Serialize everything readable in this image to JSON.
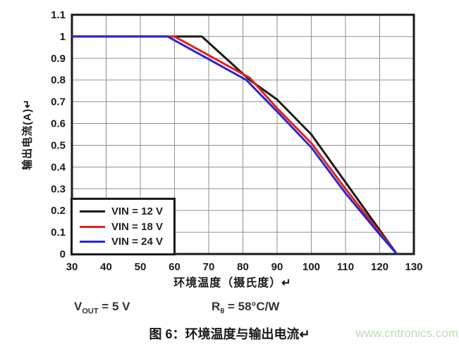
{
  "chart_data": {
    "type": "line",
    "title": "",
    "xlabel": "环境温度（摄氏度）↵",
    "ylabel": "输出电流(A)↵",
    "xlim": [
      30,
      130
    ],
    "ylim": [
      0,
      1.1
    ],
    "grid": true,
    "grid_color": "#8f8f8f",
    "axis_color": "#1a1a1a",
    "legend_position": "bottom-left",
    "x_ticks": [
      [
        30,
        "30"
      ],
      [
        40,
        "40"
      ],
      [
        50,
        "50"
      ],
      [
        60,
        "60"
      ],
      [
        70,
        "70"
      ],
      [
        80,
        "80"
      ],
      [
        90,
        "90"
      ],
      [
        100,
        "100"
      ],
      [
        110,
        "110"
      ],
      [
        120,
        "120"
      ],
      [
        130,
        "130"
      ]
    ],
    "y_ticks": [
      [
        0,
        "0"
      ],
      [
        0.1,
        "0.1"
      ],
      [
        0.2,
        "0.2"
      ],
      [
        0.3,
        "0.3"
      ],
      [
        0.4,
        "0.4"
      ],
      [
        0.5,
        "0.5"
      ],
      [
        0.6,
        "0.6"
      ],
      [
        0.7,
        "0.7"
      ],
      [
        0.8,
        "0.8"
      ],
      [
        0.9,
        "0.9"
      ],
      [
        1,
        "1"
      ],
      [
        1.1,
        "1.1"
      ]
    ],
    "series": [
      {
        "name": "VIN = 12 V",
        "color": "#1a1a1a",
        "points": [
          [
            30,
            1.0
          ],
          [
            68,
            1.0
          ],
          [
            82,
            0.8
          ],
          [
            90,
            0.71
          ],
          [
            100,
            0.55
          ],
          [
            110,
            0.33
          ],
          [
            120,
            0.11
          ],
          [
            125,
            0
          ]
        ]
      },
      {
        "name": "VIN = 18 V",
        "color": "#e42119",
        "points": [
          [
            30,
            1.0
          ],
          [
            60,
            1.0
          ],
          [
            82,
            0.81
          ],
          [
            90,
            0.67
          ],
          [
            100,
            0.51
          ],
          [
            110,
            0.3
          ],
          [
            120,
            0.1
          ],
          [
            125,
            0
          ]
        ]
      },
      {
        "name": "VIN = 24 V",
        "color": "#2626d8",
        "points": [
          [
            30,
            1.0
          ],
          [
            58,
            1.0
          ],
          [
            81,
            0.8
          ],
          [
            90,
            0.655
          ],
          [
            100,
            0.49
          ],
          [
            110,
            0.28
          ],
          [
            120,
            0.09
          ],
          [
            125,
            0
          ]
        ]
      }
    ]
  },
  "params": {
    "vout": {
      "base": "V",
      "sub": "OUT",
      "rest": " = 5 V"
    },
    "rtheta": {
      "base": "R",
      "sub": "θ",
      "rest": " = 58°C/W"
    }
  },
  "caption": {
    "text": "图 6：环境温度与输出电流↵",
    "watermark": "www.cntronics.com",
    "watermark_color": "#b9dfa9"
  }
}
